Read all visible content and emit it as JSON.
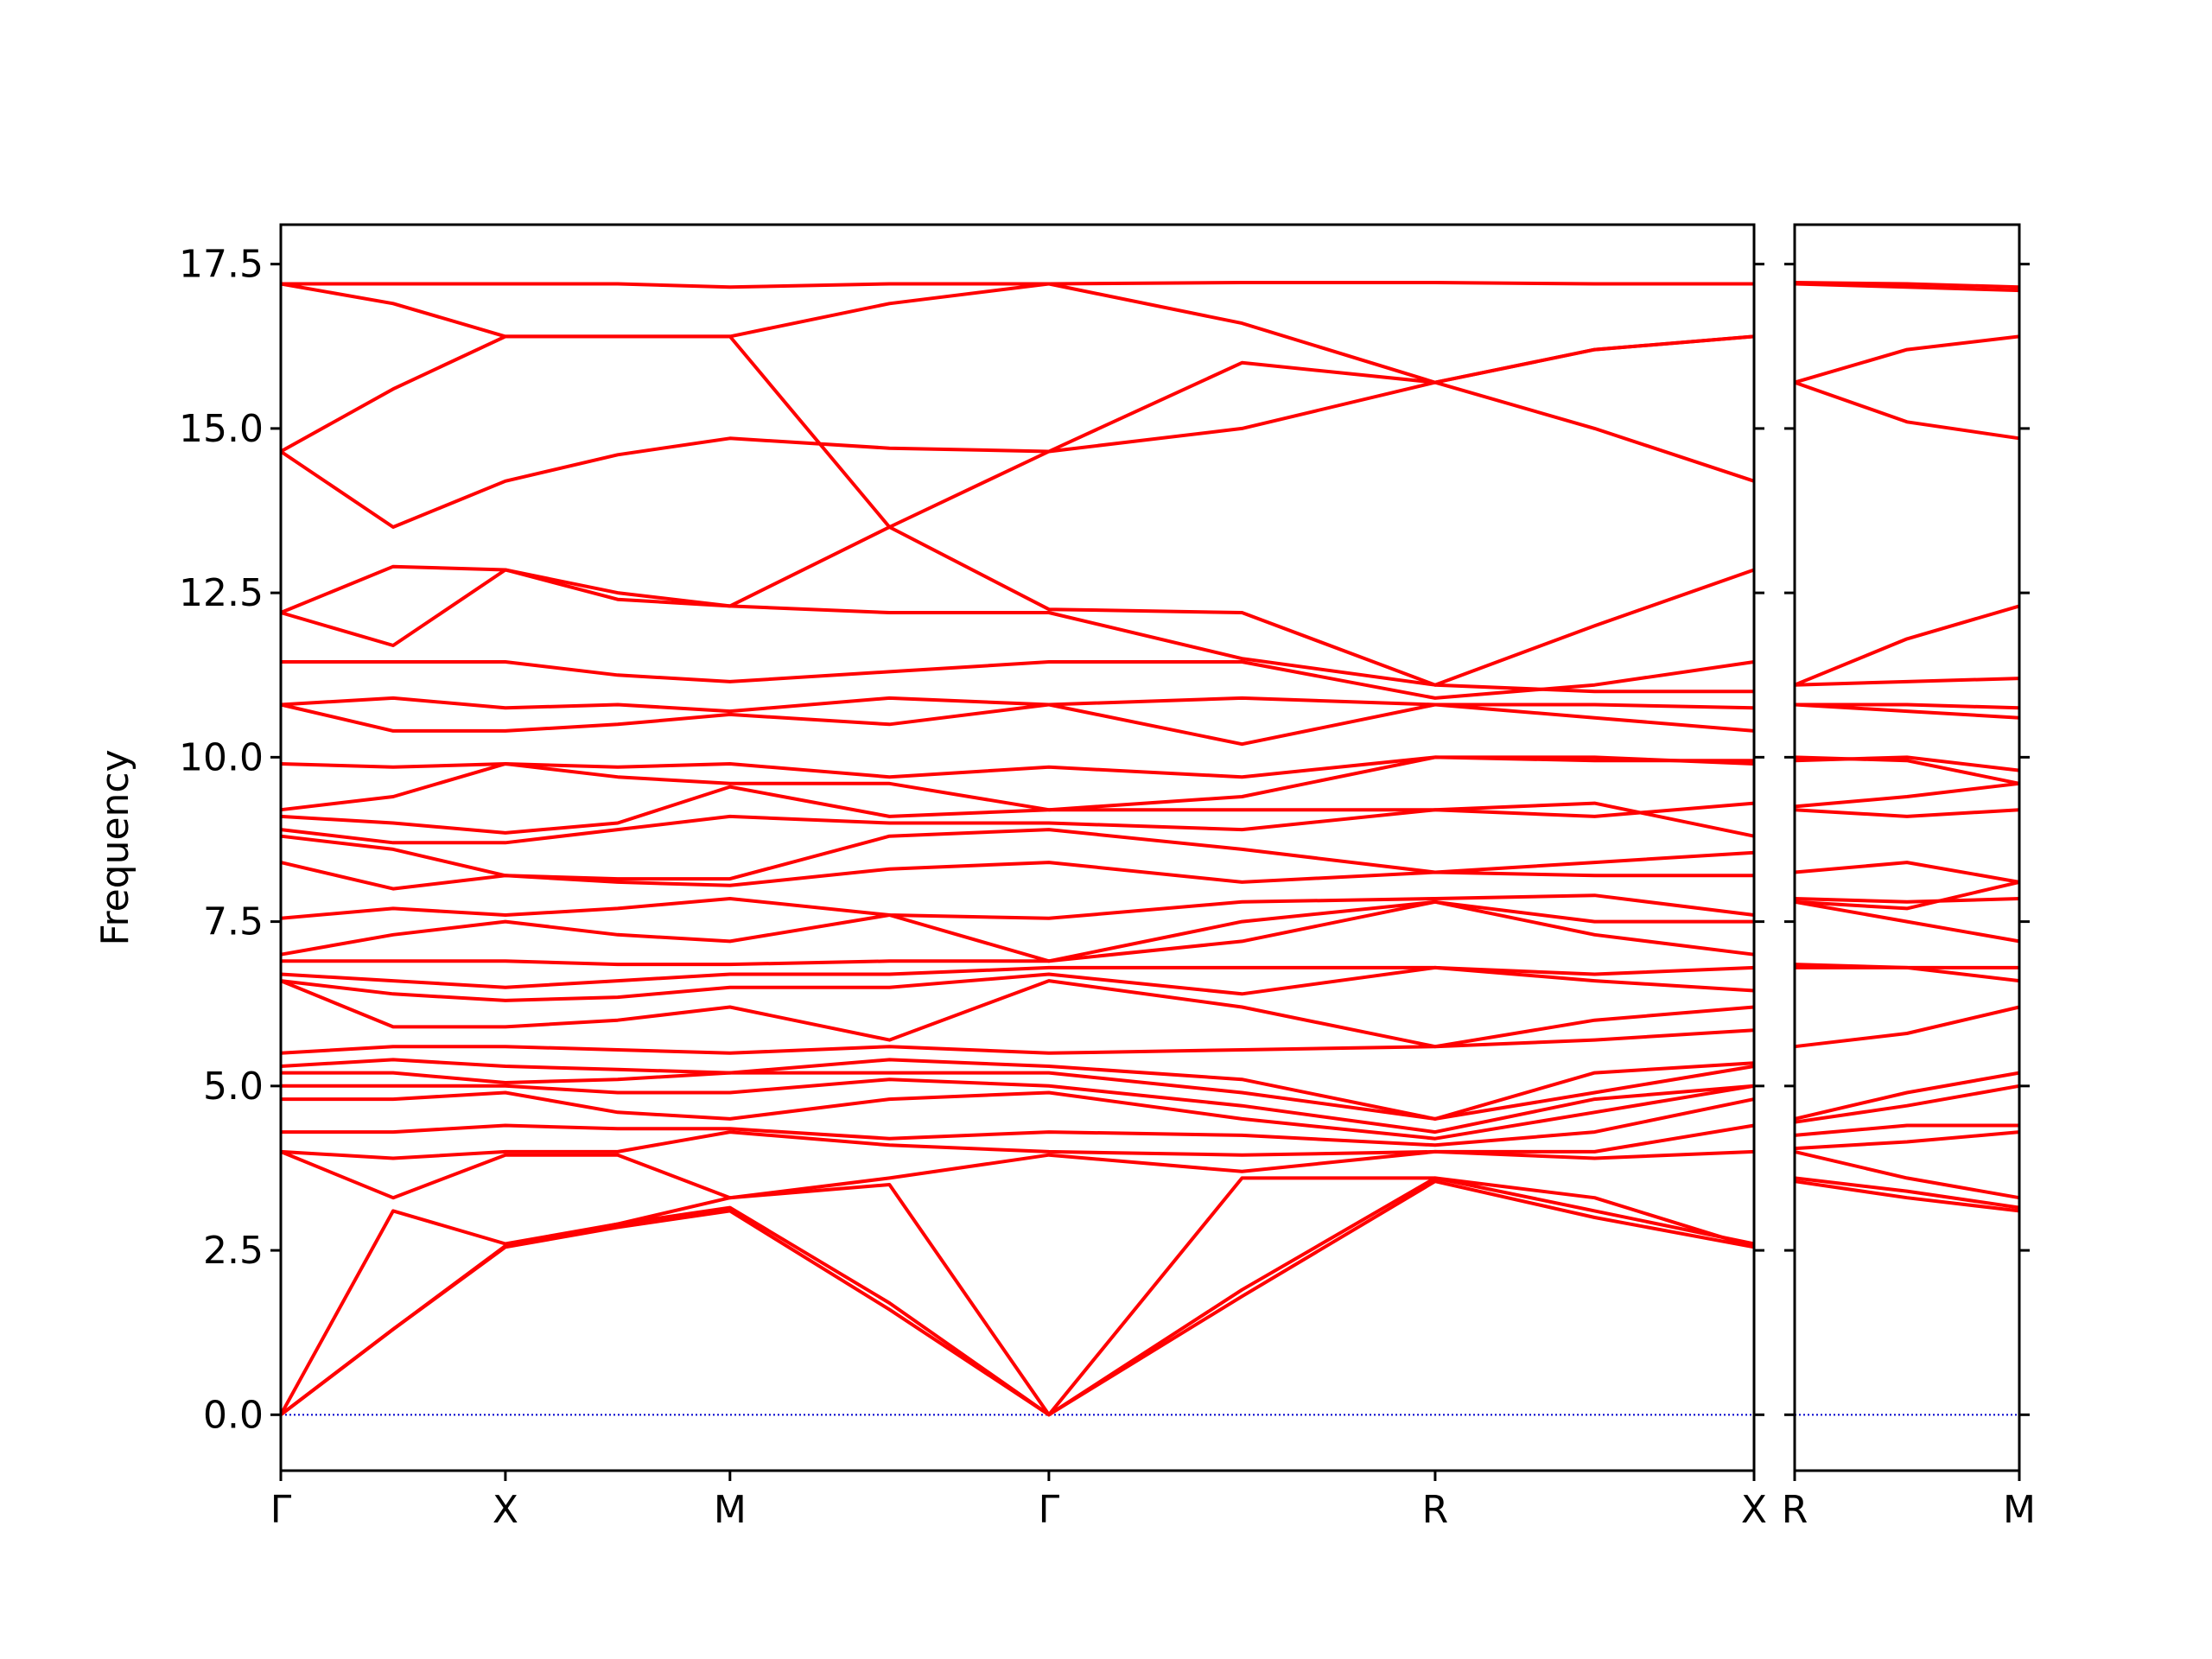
{
  "chart_data": [
    {
      "type": "line",
      "y_label": "Frequency",
      "color": "#ff0000",
      "grid": false,
      "xlim": [
        0,
        3.28
      ],
      "ylim": [
        -0.85,
        18.1
      ],
      "xticks": [
        {
          "value": 0,
          "label": "Γ"
        },
        {
          "value": 0.5,
          "label": "X"
        },
        {
          "value": 1.0,
          "label": "M"
        },
        {
          "value": 1.71,
          "label": "Γ"
        },
        {
          "value": 2.57,
          "label": "R"
        },
        {
          "value": 3.28,
          "label": "X"
        }
      ],
      "yticks": [
        {
          "value": 0,
          "label": "0.0"
        },
        2.5,
        {
          "value": 5,
          "label": "5.0"
        },
        7.5,
        {
          "value": 10,
          "label": "10.0"
        },
        12.5,
        {
          "value": 15,
          "label": "15.0"
        },
        17.5
      ],
      "ytick_labels": true,
      "hline": {
        "value": 0,
        "color": "#0000cd",
        "style": "dotted"
      },
      "x": [
        0,
        0.25,
        0.5,
        0.75,
        1.0,
        1.355,
        1.71,
        2.14,
        2.57,
        2.925,
        3.28
      ],
      "series": [
        {
          "values": [
            0,
            1.3,
            2.55,
            2.85,
            3.1,
            1.6,
            0,
            1.8,
            3.55,
            3.0,
            2.55
          ]
        },
        {
          "values": [
            0,
            1.3,
            2.57,
            2.9,
            3.15,
            1.7,
            0,
            1.9,
            3.6,
            3.1,
            2.6
          ]
        },
        {
          "values": [
            0,
            3.1,
            2.6,
            2.9,
            3.3,
            3.5,
            0,
            3.6,
            3.6,
            3.3,
            2.55
          ]
        },
        {
          "values": [
            4.0,
            3.3,
            3.95,
            3.95,
            3.3,
            3.6,
            3.95,
            3.7,
            4.0,
            3.9,
            4.0
          ]
        },
        {
          "values": [
            4.0,
            3.9,
            4.0,
            4.0,
            4.3,
            4.1,
            4.0,
            3.95,
            4.0,
            4.0,
            4.4
          ]
        },
        {
          "values": [
            4.3,
            4.3,
            4.4,
            4.35,
            4.35,
            4.2,
            4.3,
            4.25,
            4.1,
            4.3,
            4.8
          ]
        },
        {
          "values": [
            4.8,
            4.8,
            4.9,
            4.6,
            4.5,
            4.8,
            4.9,
            4.5,
            4.2,
            4.6,
            5.0
          ]
        },
        {
          "values": [
            5.0,
            5.0,
            5.0,
            4.9,
            4.9,
            5.1,
            5.0,
            4.7,
            4.3,
            4.8,
            5.0
          ]
        },
        {
          "values": [
            5.2,
            5.2,
            5.05,
            5.1,
            5.2,
            5.2,
            5.2,
            4.9,
            4.5,
            4.9,
            5.3
          ]
        },
        {
          "values": [
            5.3,
            5.4,
            5.3,
            5.25,
            5.2,
            5.4,
            5.3,
            5.1,
            4.5,
            5.2,
            5.35
          ]
        },
        {
          "values": [
            5.5,
            5.6,
            5.6,
            5.55,
            5.5,
            5.6,
            5.5,
            5.55,
            5.6,
            5.7,
            5.85
          ]
        },
        {
          "values": [
            6.6,
            5.9,
            5.9,
            6.0,
            6.2,
            5.7,
            6.6,
            6.2,
            5.6,
            6.0,
            6.2
          ]
        },
        {
          "values": [
            6.6,
            6.4,
            6.3,
            6.35,
            6.5,
            6.5,
            6.7,
            6.4,
            6.8,
            6.6,
            6.45
          ]
        },
        {
          "values": [
            6.7,
            6.6,
            6.5,
            6.6,
            6.7,
            6.7,
            6.8,
            6.8,
            6.8,
            6.7,
            6.8
          ]
        },
        {
          "values": [
            6.9,
            6.9,
            6.9,
            6.85,
            6.85,
            6.9,
            6.9,
            7.2,
            7.8,
            7.3,
            7.0
          ]
        },
        {
          "values": [
            7.0,
            7.3,
            7.5,
            7.3,
            7.2,
            7.6,
            6.9,
            7.5,
            7.8,
            7.5,
            7.5
          ]
        },
        {
          "values": [
            7.55,
            7.7,
            7.6,
            7.7,
            7.85,
            7.6,
            7.55,
            7.8,
            7.85,
            7.9,
            7.6
          ]
        },
        {
          "values": [
            8.4,
            8.0,
            8.2,
            8.1,
            8.05,
            8.3,
            8.4,
            8.1,
            8.25,
            8.2,
            8.2
          ]
        },
        {
          "values": [
            8.8,
            8.6,
            8.2,
            8.15,
            8.15,
            8.8,
            8.9,
            8.6,
            8.25,
            8.4,
            8.55
          ]
        },
        {
          "values": [
            8.9,
            8.7,
            8.7,
            8.9,
            9.1,
            9.0,
            9.0,
            8.9,
            9.2,
            9.3,
            8.8
          ]
        },
        {
          "values": [
            9.1,
            9.0,
            8.85,
            9.0,
            9.55,
            9.1,
            9.2,
            9.2,
            9.2,
            9.1,
            9.3
          ]
        },
        {
          "values": [
            9.2,
            9.4,
            9.9,
            9.7,
            9.6,
            9.6,
            9.2,
            9.4,
            10.0,
            10.0,
            9.9
          ]
        },
        {
          "values": [
            9.9,
            9.85,
            9.9,
            9.85,
            9.9,
            9.7,
            9.85,
            9.7,
            10.0,
            9.95,
            9.95
          ]
        },
        {
          "values": [
            10.8,
            10.4,
            10.4,
            10.5,
            10.65,
            10.5,
            10.8,
            10.2,
            10.8,
            10.6,
            10.4
          ]
        },
        {
          "values": [
            10.8,
            10.9,
            10.75,
            10.8,
            10.7,
            10.9,
            10.8,
            10.9,
            10.8,
            10.8,
            10.75
          ]
        },
        {
          "values": [
            11.45,
            11.45,
            11.45,
            11.25,
            11.15,
            11.3,
            11.45,
            11.45,
            10.9,
            11.1,
            11.45
          ]
        },
        {
          "values": [
            12.2,
            11.7,
            12.85,
            12.5,
            12.3,
            12.2,
            12.2,
            11.5,
            11.1,
            12.0,
            12.85
          ]
        },
        {
          "values": [
            12.2,
            12.9,
            12.85,
            12.4,
            12.3,
            13.5,
            12.25,
            12.2,
            11.1,
            11.0,
            11.0
          ]
        },
        {
          "values": [
            14.65,
            13.5,
            14.2,
            14.6,
            14.85,
            14.7,
            14.65,
            15.0,
            15.7,
            15.0,
            14.2
          ]
        },
        {
          "values": [
            14.65,
            15.6,
            16.4,
            16.4,
            16.4,
            13.5,
            14.65,
            16.0,
            15.7,
            16.2,
            16.4
          ]
        },
        {
          "values": [
            17.2,
            16.9,
            16.4,
            16.4,
            16.4,
            16.9,
            17.2,
            16.6,
            15.7,
            16.2,
            16.4
          ]
        },
        {
          "values": [
            17.2,
            17.2,
            17.2,
            17.2,
            17.15,
            17.2,
            17.2,
            17.22,
            17.22,
            17.2,
            17.2
          ]
        }
      ]
    },
    {
      "type": "line",
      "color": "#ff0000",
      "grid": false,
      "xlim": [
        0,
        0.5
      ],
      "ylim": [
        -0.85,
        18.1
      ],
      "xticks": [
        {
          "value": 0,
          "label": "R"
        },
        {
          "value": 0.5,
          "label": "M"
        }
      ],
      "yticks": [
        0,
        2.5,
        5,
        7.5,
        10,
        12.5,
        15,
        17.5
      ],
      "ytick_labels": false,
      "hline": {
        "value": 0,
        "color": "#0000cd",
        "style": "dotted"
      },
      "x": [
        0,
        0.25,
        0.5
      ],
      "series": [
        {
          "values": [
            3.55,
            3.3,
            3.1
          ]
        },
        {
          "values": [
            3.6,
            3.4,
            3.15
          ]
        },
        {
          "values": [
            4.0,
            3.6,
            3.3
          ]
        },
        {
          "values": [
            4.05,
            4.15,
            4.3
          ]
        },
        {
          "values": [
            4.25,
            4.4,
            4.4
          ]
        },
        {
          "values": [
            4.45,
            4.7,
            5.0
          ]
        },
        {
          "values": [
            4.5,
            4.9,
            5.2
          ]
        },
        {
          "values": [
            5.6,
            5.8,
            6.2
          ]
        },
        {
          "values": [
            6.8,
            6.8,
            6.6
          ]
        },
        {
          "values": [
            6.85,
            6.8,
            6.8
          ]
        },
        {
          "values": [
            7.8,
            7.5,
            7.2
          ]
        },
        {
          "values": [
            7.8,
            7.7,
            8.1
          ]
        },
        {
          "values": [
            7.85,
            7.8,
            7.85
          ]
        },
        {
          "values": [
            8.25,
            8.4,
            8.1
          ]
        },
        {
          "values": [
            9.2,
            9.1,
            9.2
          ]
        },
        {
          "values": [
            9.25,
            9.4,
            9.6
          ]
        },
        {
          "values": [
            9.95,
            10.0,
            9.8
          ]
        },
        {
          "values": [
            10.0,
            9.95,
            9.6
          ]
        },
        {
          "values": [
            10.8,
            10.7,
            10.6
          ]
        },
        {
          "values": [
            10.8,
            10.8,
            10.75
          ]
        },
        {
          "values": [
            11.1,
            11.15,
            11.2
          ]
        },
        {
          "values": [
            11.1,
            11.8,
            12.3
          ]
        },
        {
          "values": [
            15.7,
            15.1,
            14.85
          ]
        },
        {
          "values": [
            15.7,
            16.2,
            16.4
          ]
        },
        {
          "values": [
            17.2,
            17.15,
            17.1
          ]
        },
        {
          "values": [
            17.22,
            17.2,
            17.15
          ]
        }
      ]
    }
  ]
}
